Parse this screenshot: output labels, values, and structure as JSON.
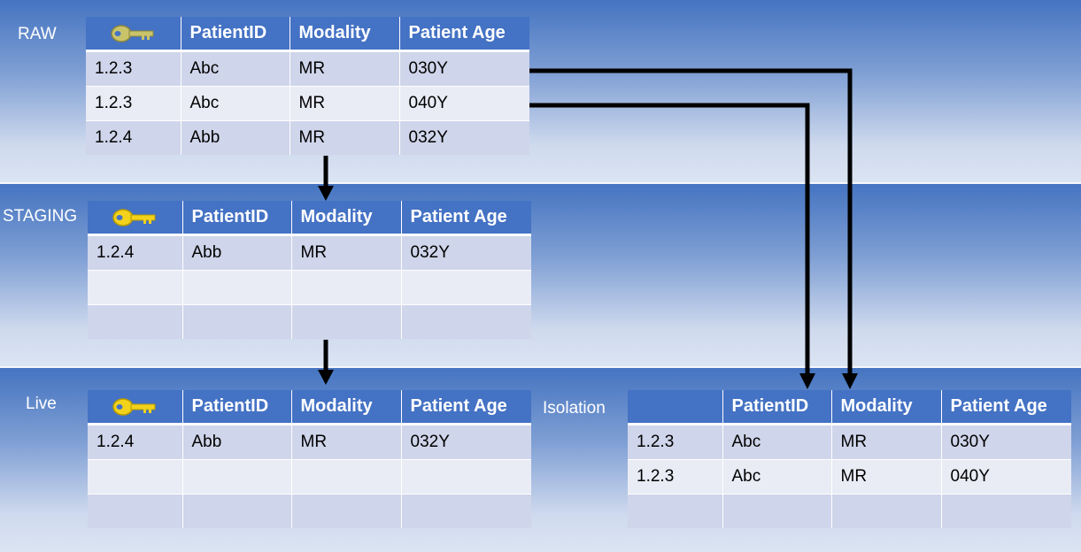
{
  "sections": {
    "raw": "RAW",
    "staging": "STAGING",
    "live": "Live",
    "isolation": "Isolation"
  },
  "columns": [
    "PatientID",
    "Modality",
    "Patient Age"
  ],
  "key_icon": "key-icon",
  "tables": {
    "raw": [
      [
        "1.2.3",
        "Abc",
        "MR",
        "030Y"
      ],
      [
        "1.2.3",
        "Abc",
        "MR",
        "040Y"
      ],
      [
        "1.2.4",
        "Abb",
        "MR",
        "032Y"
      ]
    ],
    "staging": [
      [
        "1.2.4",
        "Abb",
        "MR",
        "032Y"
      ],
      [
        "",
        "",
        "",
        ""
      ],
      [
        "",
        "",
        "",
        ""
      ]
    ],
    "live": [
      [
        "1.2.4",
        "Abb",
        "MR",
        "032Y"
      ],
      [
        "",
        "",
        "",
        ""
      ],
      [
        "",
        "",
        "",
        ""
      ]
    ],
    "isolation": [
      [
        "1.2.3",
        "Abc",
        "MR",
        "030Y"
      ],
      [
        "1.2.3",
        "Abc",
        "MR",
        "040Y"
      ],
      [
        "",
        "",
        "",
        ""
      ]
    ]
  },
  "colors": {
    "header": "#4472c4",
    "row_dark": "#cfd5ea",
    "row_light": "#e9ebf5",
    "band_top": "#4574c1",
    "arrow": "#000000"
  }
}
